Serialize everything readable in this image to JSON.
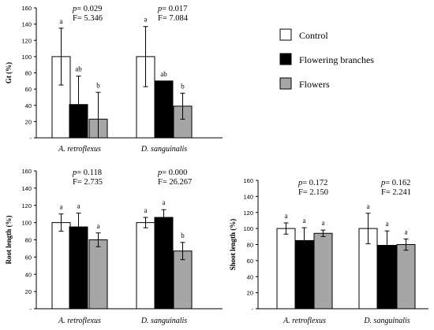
{
  "chart_data": [
    {
      "type": "bar",
      "ylabel": "Gt (%)",
      "yticks": [
        "-",
        "20",
        "40",
        "60",
        "80",
        "100",
        "120",
        "140",
        "160"
      ],
      "ylim": [
        0,
        160
      ],
      "categories": [
        "A. retroflexus",
        "D. sanguinalis"
      ],
      "series": [
        {
          "name": "Control",
          "color": "#ffffff",
          "values": [
            100,
            100
          ],
          "errors": [
            35,
            37
          ],
          "letters": [
            "a",
            "a"
          ]
        },
        {
          "name": "Flowering branches",
          "color": "#000000",
          "values": [
            41,
            70
          ],
          "errors": [
            35,
            0
          ],
          "letters": [
            "ab",
            "ab"
          ]
        },
        {
          "name": "Flowers",
          "color": "#a6a6a6",
          "values": [
            23,
            39
          ],
          "errors": [
            33,
            16
          ],
          "letters": [
            "b",
            "b"
          ]
        }
      ],
      "stats": [
        {
          "p": "0.029",
          "F": "5.346"
        },
        {
          "p": "0.017",
          "F": "7.084"
        }
      ]
    },
    {
      "type": "bar",
      "ylabel": "Root length (%)",
      "yticks": [
        "-",
        "20",
        "40",
        "60",
        "80",
        "100",
        "120",
        "140",
        "160"
      ],
      "ylim": [
        0,
        160
      ],
      "categories": [
        "A. retroflexus",
        "D. sanguinalis"
      ],
      "series": [
        {
          "name": "Control",
          "color": "#ffffff",
          "values": [
            100,
            100
          ],
          "errors": [
            10,
            6
          ],
          "letters": [
            "a",
            "a"
          ]
        },
        {
          "name": "Flowering branches",
          "color": "#000000",
          "values": [
            95,
            106
          ],
          "errors": [
            16,
            9
          ],
          "letters": [
            "a",
            "a"
          ]
        },
        {
          "name": "Flowers",
          "color": "#a6a6a6",
          "values": [
            80,
            67
          ],
          "errors": [
            8,
            10
          ],
          "letters": [
            "a",
            "b"
          ]
        }
      ],
      "stats": [
        {
          "p": "0.118",
          "F": "2.735"
        },
        {
          "p": "0.000",
          "F": "26.267"
        }
      ]
    },
    {
      "type": "bar",
      "ylabel": "Shoot length (%)",
      "yticks": [
        "-",
        "20",
        "40",
        "60",
        "80",
        "100",
        "120",
        "140",
        "160"
      ],
      "ylim": [
        0,
        160
      ],
      "categories": [
        "A. retroflexus",
        "D. sanguinalis"
      ],
      "series": [
        {
          "name": "Control",
          "color": "#ffffff",
          "values": [
            100,
            100
          ],
          "errors": [
            7,
            19
          ],
          "letters": [
            "a",
            "a"
          ]
        },
        {
          "name": "Flowering branches",
          "color": "#000000",
          "values": [
            85,
            79
          ],
          "errors": [
            16,
            18
          ],
          "letters": [
            "a",
            "a"
          ]
        },
        {
          "name": "Flowers",
          "color": "#a6a6a6",
          "values": [
            94,
            80
          ],
          "errors": [
            4,
            7
          ],
          "letters": [
            "a",
            "a"
          ]
        }
      ],
      "stats": [
        {
          "p": "0.172",
          "F": "2.150"
        },
        {
          "p": "0.162",
          "F": "2.241"
        }
      ]
    }
  ],
  "legend": [
    {
      "name": "Control",
      "color": "#ffffff"
    },
    {
      "name": "Flowering branches",
      "color": "#000000"
    },
    {
      "name": "Flowers",
      "color": "#a6a6a6"
    }
  ]
}
